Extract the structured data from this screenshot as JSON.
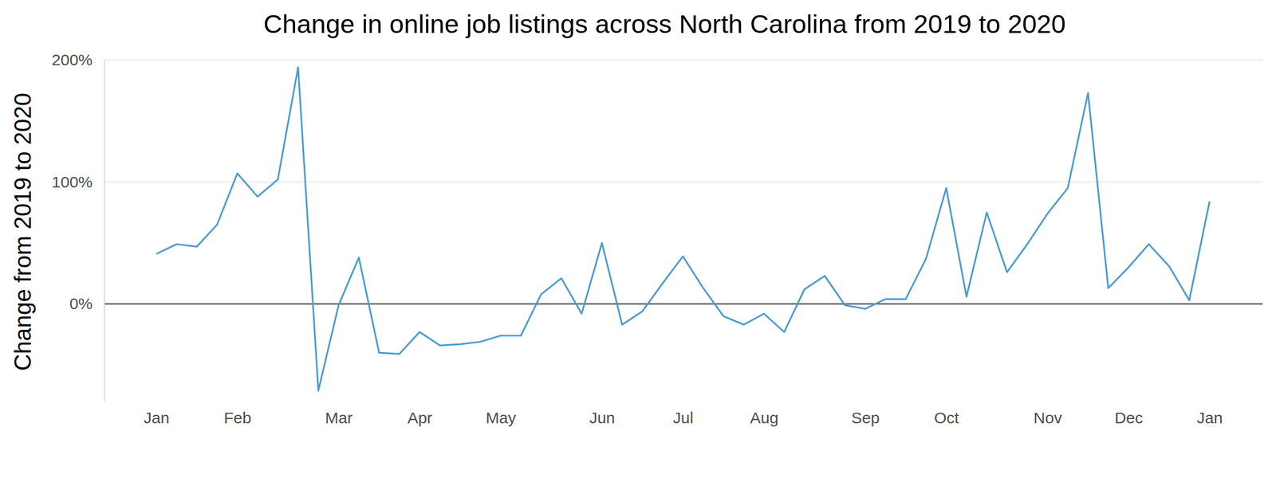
{
  "chart_data": {
    "type": "line",
    "title": "Change in online job listings across North Carolina from 2019 to 2020",
    "y_label": "Change from 2019 to 2020",
    "categories": [
      "Jan",
      null,
      null,
      null,
      "Feb",
      null,
      null,
      null,
      null,
      "Mar",
      null,
      null,
      null,
      "Apr",
      null,
      null,
      null,
      "May",
      null,
      null,
      null,
      null,
      "Jun",
      null,
      null,
      null,
      "Jul",
      null,
      null,
      null,
      "Aug",
      null,
      null,
      null,
      null,
      "Sep",
      null,
      null,
      null,
      "Oct",
      null,
      null,
      null,
      null,
      "Nov",
      null,
      null,
      null,
      "Dec",
      null,
      null,
      null,
      "Jan"
    ],
    "values": [
      41,
      49,
      47,
      65,
      107,
      88,
      102,
      194,
      -71,
      -1,
      38,
      -40,
      -41,
      -23,
      -34,
      -33,
      -31,
      -26,
      -26,
      8,
      21,
      -8,
      50,
      -17,
      -6,
      17,
      39,
      13,
      -10,
      -17,
      -8,
      -23,
      12,
      23,
      -1,
      -4,
      4,
      4,
      37,
      95,
      6,
      75,
      26,
      49,
      74,
      95,
      173,
      13,
      30,
      49,
      31,
      3,
      84
    ],
    "color": "#4b9bd3",
    "ylim": [
      -80,
      200
    ],
    "yticks": [
      {
        "value": 0,
        "label": "0%"
      },
      {
        "value": 100,
        "label": "100%"
      },
      {
        "value": 200,
        "label": "200%"
      }
    ],
    "grid": true
  }
}
